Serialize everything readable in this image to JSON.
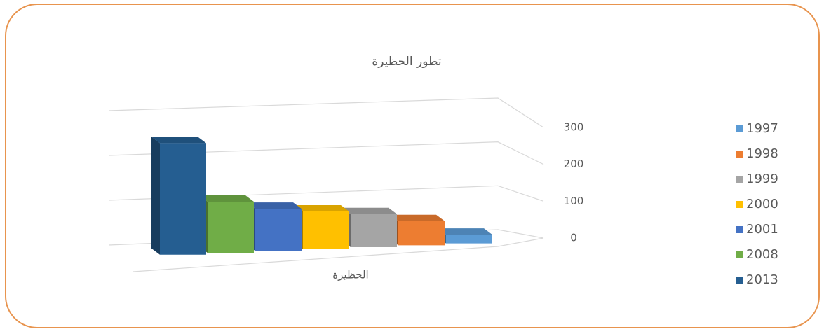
{
  "chart_data": {
    "type": "bar3d",
    "title": "تطور الحظيرة",
    "categories": [
      "الحظيرة"
    ],
    "series": [
      {
        "name": "1997",
        "color": "#5b9bd5",
        "values": [
          20
        ]
      },
      {
        "name": "1998",
        "color": "#ed7d31",
        "values": [
          55
        ]
      },
      {
        "name": "1999",
        "color": "#a5a5a5",
        "values": [
          75
        ]
      },
      {
        "name": "2000",
        "color": "#ffc000",
        "values": [
          85
        ]
      },
      {
        "name": "2001",
        "color": "#4472c4",
        "values": [
          95
        ]
      },
      {
        "name": "2008",
        "color": "#70ad47",
        "values": [
          115
        ]
      },
      {
        "name": "2013",
        "color": "#255e91",
        "values": [
          250
        ]
      }
    ],
    "ylim": [
      0,
      300
    ],
    "yticks": [
      0,
      100,
      200,
      300
    ],
    "grid": true,
    "legend": "right"
  }
}
